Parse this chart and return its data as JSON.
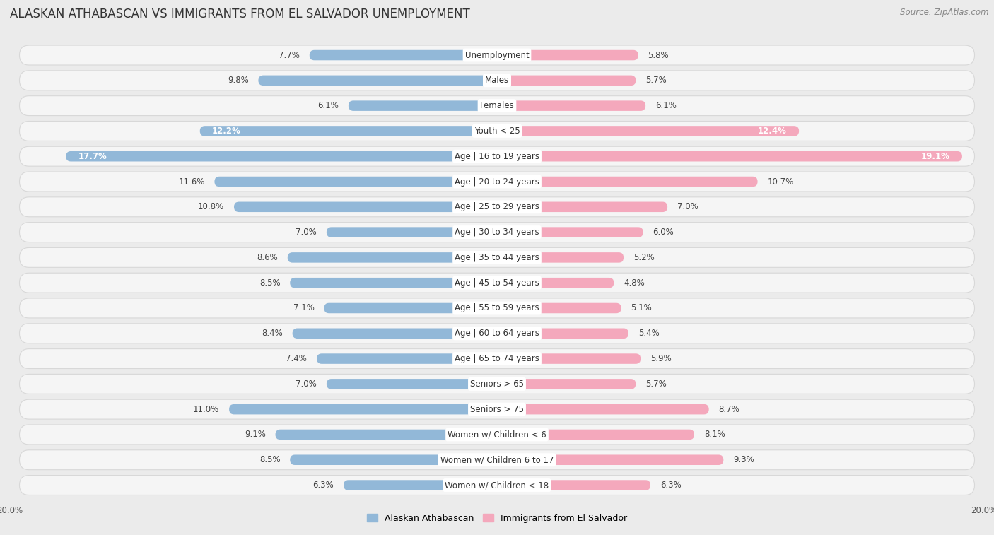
{
  "title": "ALASKAN ATHABASCAN VS IMMIGRANTS FROM EL SALVADOR UNEMPLOYMENT",
  "source": "Source: ZipAtlas.com",
  "categories": [
    "Unemployment",
    "Males",
    "Females",
    "Youth < 25",
    "Age | 16 to 19 years",
    "Age | 20 to 24 years",
    "Age | 25 to 29 years",
    "Age | 30 to 34 years",
    "Age | 35 to 44 years",
    "Age | 45 to 54 years",
    "Age | 55 to 59 years",
    "Age | 60 to 64 years",
    "Age | 65 to 74 years",
    "Seniors > 65",
    "Seniors > 75",
    "Women w/ Children < 6",
    "Women w/ Children 6 to 17",
    "Women w/ Children < 18"
  ],
  "left_values": [
    7.7,
    9.8,
    6.1,
    12.2,
    17.7,
    11.6,
    10.8,
    7.0,
    8.6,
    8.5,
    7.1,
    8.4,
    7.4,
    7.0,
    11.0,
    9.1,
    8.5,
    6.3
  ],
  "right_values": [
    5.8,
    5.7,
    6.1,
    12.4,
    19.1,
    10.7,
    7.0,
    6.0,
    5.2,
    4.8,
    5.1,
    5.4,
    5.9,
    5.7,
    8.7,
    8.1,
    9.3,
    6.3
  ],
  "left_color": "#92b8d8",
  "right_color": "#f4a8bc",
  "left_label": "Alaskan Athabascan",
  "right_label": "Immigrants from El Salvador",
  "axis_limit": 20.0,
  "background_color": "#ebebeb",
  "row_bg_color": "#f5f5f5",
  "row_border_color": "#d8d8d8",
  "center_label_bg": "#ffffff",
  "title_fontsize": 12,
  "source_fontsize": 8.5,
  "cat_fontsize": 8.5,
  "value_fontsize": 8.5,
  "special_white_label_indices": [
    3,
    4
  ],
  "legend_fontsize": 9
}
